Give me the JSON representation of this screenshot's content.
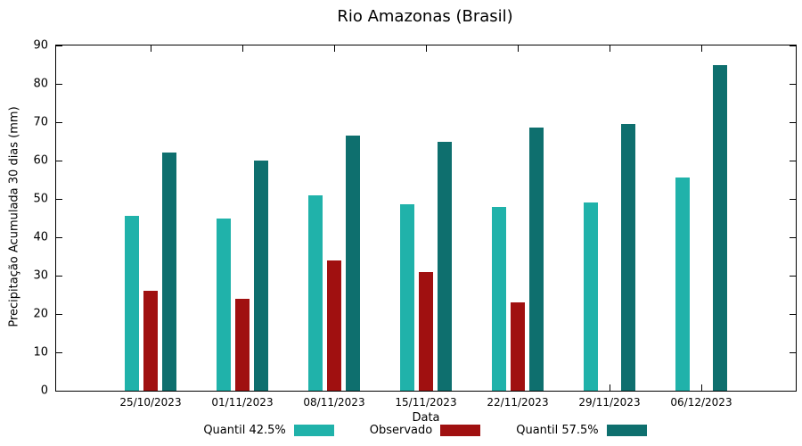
{
  "chart_data": {
    "type": "bar",
    "title": "Rio Amazonas (Brasil)",
    "xlabel": "Data",
    "ylabel": "Precipitação Acumulada 30 dias (mm)",
    "ylim": [
      0,
      90
    ],
    "ytick_interval": 10,
    "grid": false,
    "legend_position": "bottom",
    "categories": [
      "25/10/2023",
      "01/11/2023",
      "08/11/2023",
      "15/11/2023",
      "22/11/2023",
      "29/11/2023",
      "06/12/2023"
    ],
    "series": [
      {
        "name": "Quantil 42.5%",
        "color": "#20b2aa",
        "values": [
          45.5,
          45,
          51,
          48.5,
          48,
          49,
          55.5
        ]
      },
      {
        "name": "Observado",
        "color": "#a01010",
        "values": [
          26,
          24,
          34,
          31,
          23,
          null,
          null
        ]
      },
      {
        "name": "Quantil 57.5%",
        "color": "#0e6f6e",
        "values": [
          62,
          60,
          66.5,
          65,
          68.5,
          69.5,
          85
        ]
      }
    ]
  }
}
